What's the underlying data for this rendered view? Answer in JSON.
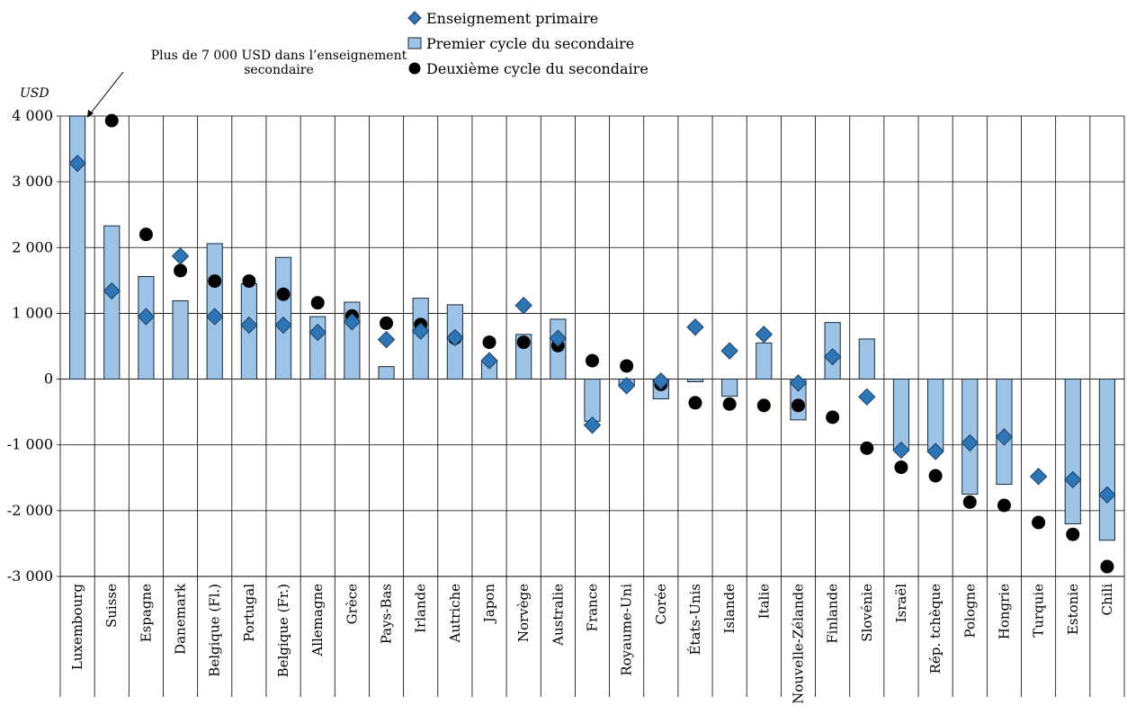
{
  "chart_data": {
    "type": "bar",
    "ylabel": "USD",
    "ylim": [
      -3000,
      4000
    ],
    "yticks": [
      "-3 000",
      "-2 000",
      "-1 000",
      "0",
      "1 000",
      "2 000",
      "3 000",
      "4 000"
    ],
    "grid": true,
    "legend_position": "top-center",
    "annotation": "Plus de 7 000 USD dans l’enseignement secondaire",
    "categories": [
      "Luxembourg",
      "Suisse",
      "Espagne",
      "Danemark",
      "Belgique (Fl.)",
      "Portugal",
      "Belgique (Fr.)",
      "Allemagne",
      "Grèce",
      "Pays-Bas",
      "Irlande",
      "Autriche",
      "Japon",
      "Norvège",
      "Australie",
      "France",
      "Royaume-Uni",
      "Corée",
      "États-Unis",
      "Islande",
      "Italie",
      "Nouvelle-Zélande",
      "Finlande",
      "Slovénie",
      "Israël",
      "Rép. tchèque",
      "Pologne",
      "Hongrie",
      "Turquie",
      "Estonie",
      "Chili"
    ],
    "series": [
      {
        "name": "Enseignement primaire",
        "marker": "diamond",
        "color": "#2e75b6",
        "values": [
          3280,
          1340,
          950,
          1870,
          950,
          820,
          820,
          710,
          870,
          600,
          730,
          630,
          280,
          1120,
          620,
          -700,
          -100,
          -30,
          790,
          430,
          680,
          -60,
          340,
          -270,
          -1080,
          -1100,
          -970,
          -880,
          -1480,
          -1530,
          -1760
        ]
      },
      {
        "name": "Premier cycle du secondaire",
        "marker": "bar",
        "color": "#9dc3e6",
        "values": [
          4000,
          2330,
          1560,
          1190,
          2060,
          1450,
          1850,
          950,
          1170,
          190,
          1230,
          1130,
          270,
          680,
          910,
          -640,
          -100,
          -300,
          -40,
          -260,
          550,
          -620,
          860,
          610,
          -1080,
          -1090,
          -1750,
          -1600,
          null,
          -2200,
          -2450
        ]
      },
      {
        "name": "Deuxième cycle du secondaire",
        "marker": "circle",
        "color": "#000000",
        "values": [
          null,
          3930,
          2200,
          1650,
          1490,
          1490,
          1290,
          1160,
          960,
          850,
          830,
          620,
          560,
          560,
          510,
          280,
          200,
          -80,
          -360,
          -380,
          -400,
          -400,
          -580,
          -1050,
          -1340,
          -1470,
          -1870,
          -1920,
          -2180,
          -2360,
          -2850
        ]
      }
    ]
  }
}
